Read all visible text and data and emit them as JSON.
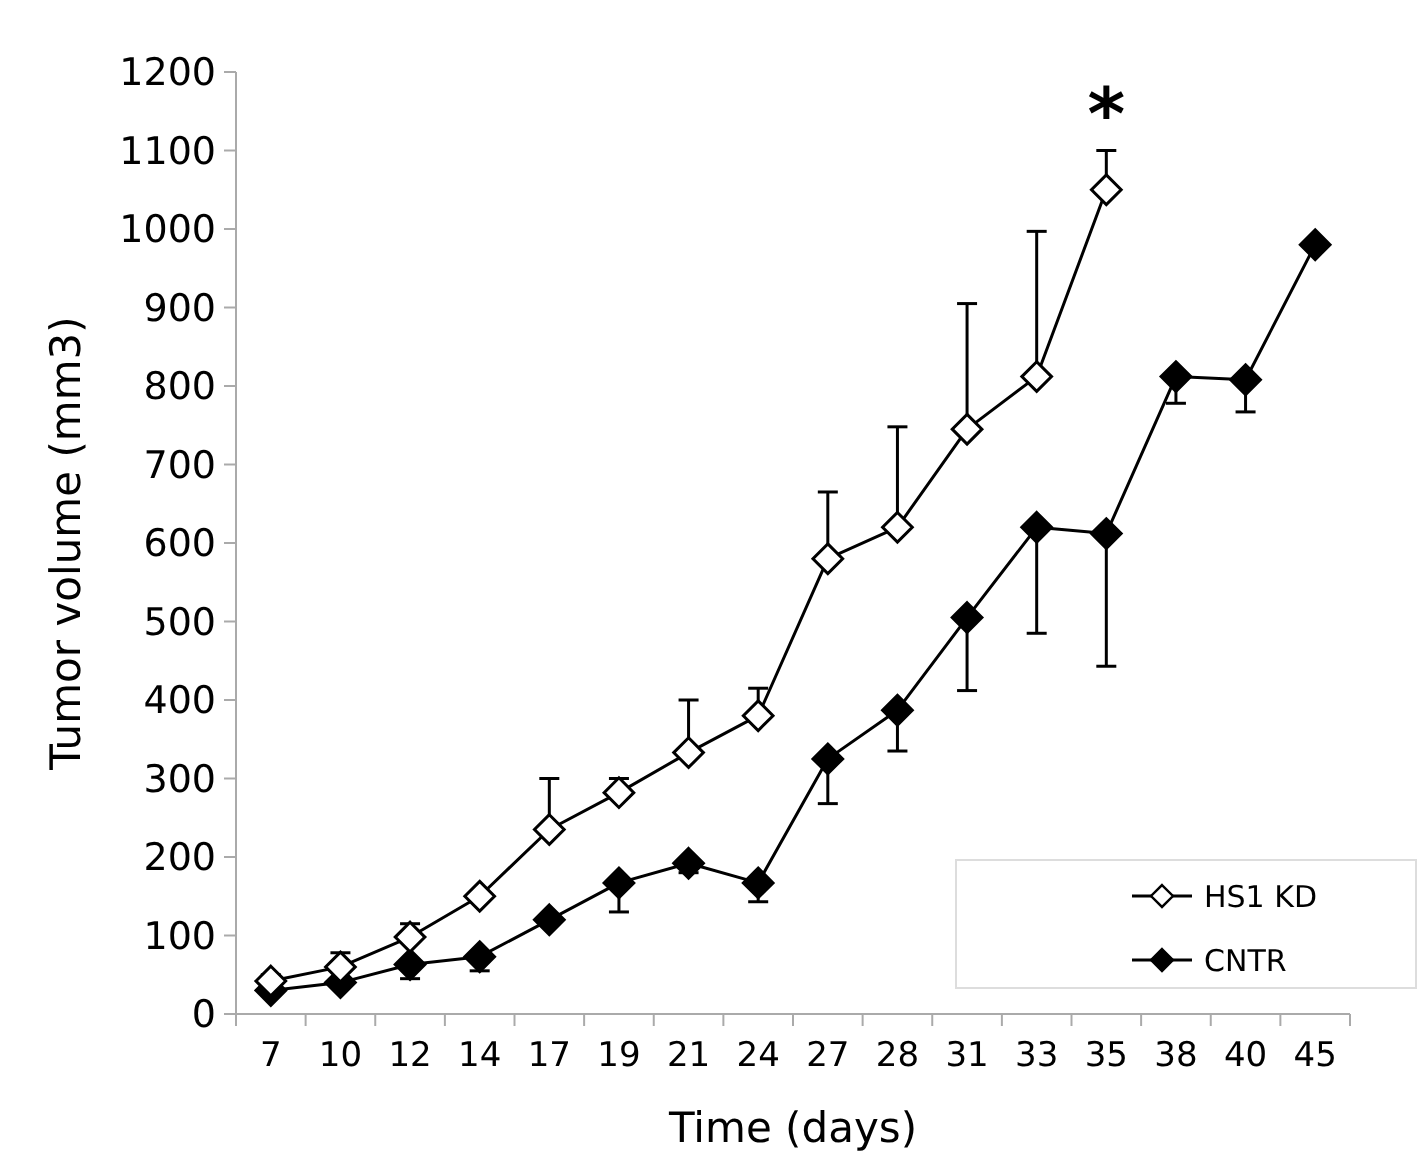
{
  "chart_data": {
    "type": "line",
    "xlabel": "Time (days)",
    "ylabel": "Tumor volume (mm3)",
    "categories": [
      "7",
      "10",
      "12",
      "14",
      "17",
      "19",
      "21",
      "24",
      "27",
      "28",
      "31",
      "33",
      "35",
      "38",
      "40",
      "45"
    ],
    "ylim": [
      0,
      1200
    ],
    "yticks": [
      0,
      100,
      200,
      300,
      400,
      500,
      600,
      700,
      800,
      900,
      1000,
      1100,
      1200
    ],
    "grid": false,
    "legend": "bottom right",
    "marker": "diamond",
    "line_style": "solid",
    "series": [
      {
        "name": "HS1 KD",
        "color": "#ffffff",
        "values": [
          42,
          60,
          98,
          150,
          235,
          282,
          333,
          380,
          580,
          620,
          745,
          812,
          1050,
          null,
          null,
          null
        ],
        "errors": [
          [
            42,
            50
          ],
          [
            60,
            78
          ],
          [
            98,
            115
          ],
          [
            150,
            155
          ],
          [
            235,
            300
          ],
          [
            282,
            300
          ],
          [
            333,
            400
          ],
          [
            380,
            415
          ],
          [
            580,
            665
          ],
          [
            620,
            748
          ],
          [
            745,
            905
          ],
          [
            812,
            997
          ],
          [
            1050,
            1100
          ],
          null,
          null,
          null
        ]
      },
      {
        "name": "CNTR",
        "color": "#000000",
        "values": [
          30,
          40,
          63,
          73,
          120,
          167,
          192,
          167,
          325,
          387,
          505,
          620,
          612,
          812,
          808,
          980
        ],
        "errors": [
          [
            25,
            30
          ],
          [
            35,
            40
          ],
          [
            45,
            63
          ],
          [
            55,
            73
          ],
          null,
          [
            130,
            167
          ],
          [
            180,
            192
          ],
          [
            143,
            167
          ],
          [
            268,
            325
          ],
          [
            335,
            387
          ],
          [
            412,
            505
          ],
          [
            485,
            620
          ],
          [
            443,
            612
          ],
          [
            778,
            812
          ],
          [
            767,
            808
          ],
          null
        ]
      }
    ],
    "annotations": [
      "*"
    ]
  }
}
